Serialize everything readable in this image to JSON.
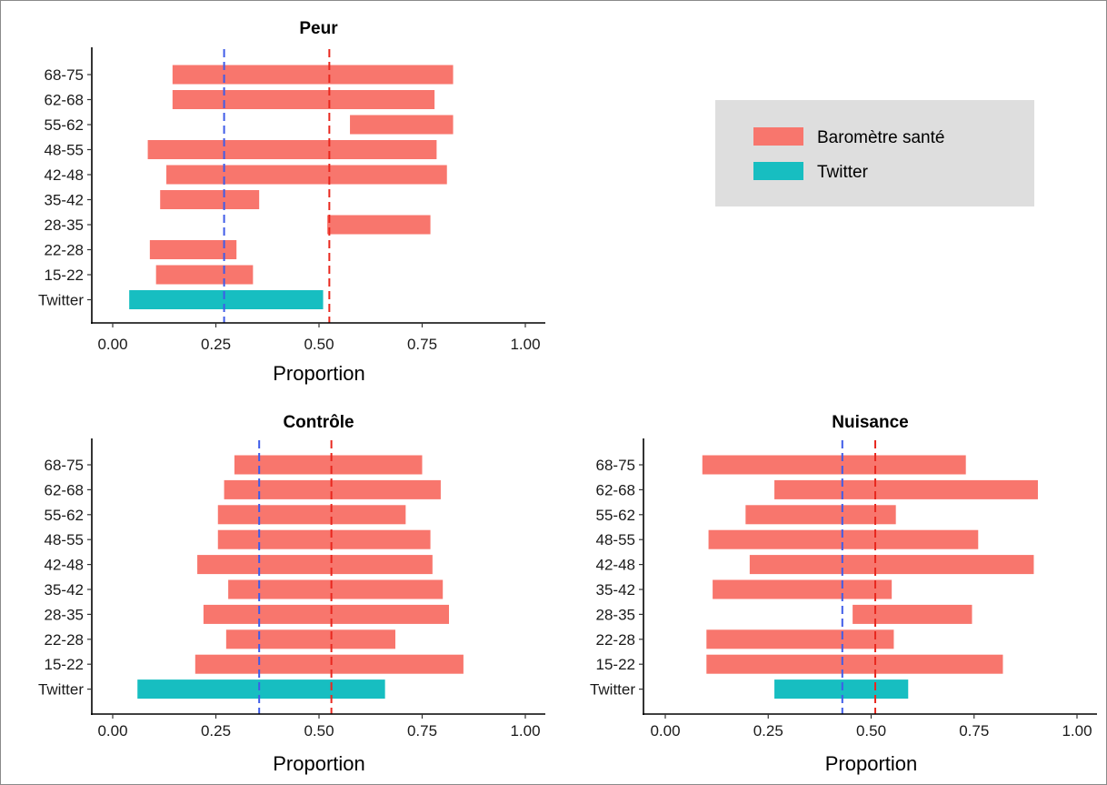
{
  "chart_data": [
    {
      "type": "bar",
      "title": "Peur",
      "xlabel": "Proportion",
      "xlim": [
        0,
        1
      ],
      "xticks": [
        "0.00",
        "0.25",
        "0.50",
        "0.75",
        "1.00"
      ],
      "categories": [
        "Twitter",
        "15-22",
        "22-28",
        "28-35",
        "35-42",
        "42-48",
        "48-55",
        "55-62",
        "62-68",
        "68-75"
      ],
      "ranges": [
        {
          "category": "Twitter",
          "start": 0.04,
          "end": 0.51,
          "series": "Twitter"
        },
        {
          "category": "15-22",
          "start": 0.105,
          "end": 0.34,
          "series": "Baromètre santé"
        },
        {
          "category": "22-28",
          "start": 0.09,
          "end": 0.3,
          "series": "Baromètre santé"
        },
        {
          "category": "28-35",
          "start": 0.52,
          "end": 0.77,
          "series": "Baromètre santé"
        },
        {
          "category": "35-42",
          "start": 0.115,
          "end": 0.355,
          "series": "Baromètre santé"
        },
        {
          "category": "42-48",
          "start": 0.13,
          "end": 0.81,
          "series": "Baromètre santé"
        },
        {
          "category": "48-55",
          "start": 0.085,
          "end": 0.785,
          "series": "Baromètre santé"
        },
        {
          "category": "55-62",
          "start": 0.575,
          "end": 0.825,
          "series": "Baromètre santé"
        },
        {
          "category": "62-68",
          "start": 0.145,
          "end": 0.78,
          "series": "Baromètre santé"
        },
        {
          "category": "68-75",
          "start": 0.145,
          "end": 0.825,
          "series": "Baromètre santé"
        }
      ],
      "vlines": [
        {
          "value": 0.27,
          "color": "#3f5ce8"
        },
        {
          "value": 0.525,
          "color": "#e8281f"
        }
      ]
    },
    {
      "type": "bar",
      "title": "Contrôle",
      "xlabel": "Proportion",
      "xlim": [
        0,
        1
      ],
      "xticks": [
        "0.00",
        "0.25",
        "0.50",
        "0.75",
        "1.00"
      ],
      "categories": [
        "Twitter",
        "15-22",
        "22-28",
        "28-35",
        "35-42",
        "42-48",
        "48-55",
        "55-62",
        "62-68",
        "68-75"
      ],
      "ranges": [
        {
          "category": "Twitter",
          "start": 0.06,
          "end": 0.66,
          "series": "Twitter"
        },
        {
          "category": "15-22",
          "start": 0.2,
          "end": 0.85,
          "series": "Baromètre santé"
        },
        {
          "category": "22-28",
          "start": 0.275,
          "end": 0.685,
          "series": "Baromètre santé"
        },
        {
          "category": "28-35",
          "start": 0.22,
          "end": 0.815,
          "series": "Baromètre santé"
        },
        {
          "category": "35-42",
          "start": 0.28,
          "end": 0.8,
          "series": "Baromètre santé"
        },
        {
          "category": "42-48",
          "start": 0.205,
          "end": 0.775,
          "series": "Baromètre santé"
        },
        {
          "category": "48-55",
          "start": 0.255,
          "end": 0.77,
          "series": "Baromètre santé"
        },
        {
          "category": "55-62",
          "start": 0.255,
          "end": 0.71,
          "series": "Baromètre santé"
        },
        {
          "category": "62-68",
          "start": 0.27,
          "end": 0.795,
          "series": "Baromètre santé"
        },
        {
          "category": "68-75",
          "start": 0.295,
          "end": 0.75,
          "series": "Baromètre santé"
        }
      ],
      "vlines": [
        {
          "value": 0.355,
          "color": "#3f5ce8"
        },
        {
          "value": 0.53,
          "color": "#e8281f"
        }
      ]
    },
    {
      "type": "bar",
      "title": "Nuisance",
      "xlabel": "Proportion",
      "xlim": [
        0,
        1
      ],
      "xticks": [
        "0.00",
        "0.25",
        "0.50",
        "0.75",
        "1.00"
      ],
      "categories": [
        "Twitter",
        "15-22",
        "22-28",
        "28-35",
        "35-42",
        "42-48",
        "48-55",
        "55-62",
        "62-68",
        "68-75"
      ],
      "ranges": [
        {
          "category": "Twitter",
          "start": 0.265,
          "end": 0.59,
          "series": "Twitter"
        },
        {
          "category": "15-22",
          "start": 0.1,
          "end": 0.82,
          "series": "Baromètre santé"
        },
        {
          "category": "22-28",
          "start": 0.1,
          "end": 0.555,
          "series": "Baromètre santé"
        },
        {
          "category": "28-35",
          "start": 0.455,
          "end": 0.745,
          "series": "Baromètre santé"
        },
        {
          "category": "35-42",
          "start": 0.115,
          "end": 0.55,
          "series": "Baromètre santé"
        },
        {
          "category": "42-48",
          "start": 0.205,
          "end": 0.895,
          "series": "Baromètre santé"
        },
        {
          "category": "48-55",
          "start": 0.105,
          "end": 0.76,
          "series": "Baromètre santé"
        },
        {
          "category": "55-62",
          "start": 0.195,
          "end": 0.56,
          "series": "Baromètre santé"
        },
        {
          "category": "62-68",
          "start": 0.265,
          "end": 0.905,
          "series": "Baromètre santé"
        },
        {
          "category": "68-75",
          "start": 0.09,
          "end": 0.73,
          "series": "Baromètre santé"
        }
      ],
      "vlines": [
        {
          "value": 0.43,
          "color": "#3f5ce8"
        },
        {
          "value": 0.51,
          "color": "#e8281f"
        }
      ]
    }
  ],
  "legend": {
    "position": "top-right",
    "items": [
      {
        "label": "Baromètre santé",
        "color": "#f8766d"
      },
      {
        "label": "Twitter",
        "color": "#17bec1"
      }
    ]
  }
}
